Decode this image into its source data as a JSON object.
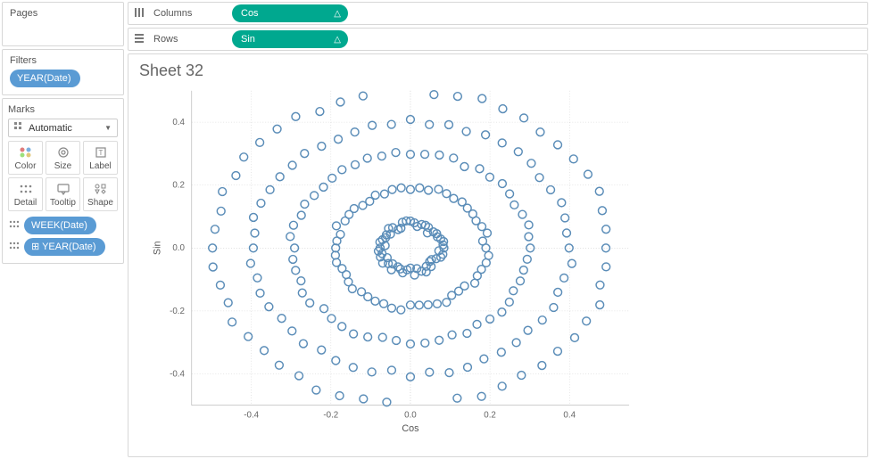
{
  "sidebar": {
    "pages": {
      "title": "Pages"
    },
    "filters": {
      "title": "Filters",
      "items": [
        {
          "label": "YEAR(Date)"
        }
      ]
    },
    "marks": {
      "title": "Marks",
      "dropdown_label": "Automatic",
      "buttons": [
        {
          "name": "color-mark-btn",
          "label": "Color",
          "icon": "color"
        },
        {
          "name": "size-mark-btn",
          "label": "Size",
          "icon": "size"
        },
        {
          "name": "label-mark-btn",
          "label": "Label",
          "icon": "label"
        },
        {
          "name": "detail-mark-btn",
          "label": "Detail",
          "icon": "detail"
        },
        {
          "name": "tooltip-mark-btn",
          "label": "Tooltip",
          "icon": "tooltip"
        },
        {
          "name": "shape-mark-btn",
          "label": "Shape",
          "icon": "shape"
        }
      ],
      "pills": [
        {
          "icon": "detail",
          "label": "WEEK(Date)"
        },
        {
          "icon": "detail",
          "prefix": "⊞",
          "label": "YEAR(Date)"
        }
      ]
    }
  },
  "shelves": {
    "columns": {
      "label": "Columns",
      "pills": [
        {
          "label": "Cos",
          "badge": "△"
        }
      ]
    },
    "rows": {
      "label": "Rows",
      "pills": [
        {
          "label": "Sin",
          "badge": "△"
        }
      ]
    }
  },
  "sheet": {
    "title": "Sheet 32",
    "chart": {
      "type": "scatter",
      "xlabel": "Cos",
      "ylabel": "Sin",
      "xlim": [
        -0.55,
        0.55
      ],
      "ylim": [
        -0.5,
        0.5
      ],
      "ticks": [
        -0.4,
        -0.2,
        0.0,
        0.2,
        0.4
      ],
      "tick_labels": [
        "-0.4",
        "-0.2",
        "0.0",
        "0.2",
        "0.4"
      ],
      "marker_color": "#5b8db8",
      "marker_radius": 4.5,
      "marker_stroke": 1.5,
      "background_color": "#ffffff",
      "grid_color": "#cccccc",
      "rings": [
        {
          "radius": 0.075,
          "points": 52,
          "jitter": 0.012
        },
        {
          "radius": 0.19,
          "points": 52,
          "jitter": 0.01
        },
        {
          "radius": 0.3,
          "points": 52,
          "jitter": 0.01
        },
        {
          "radius": 0.4,
          "points": 52,
          "jitter": 0.01
        },
        {
          "radius": 0.5,
          "points": 52,
          "jitter": 0.01
        }
      ]
    }
  },
  "colors": {
    "blue_pill": "#5a9bd4",
    "green_pill": "#00a88f",
    "marker": "#5b8db8"
  }
}
